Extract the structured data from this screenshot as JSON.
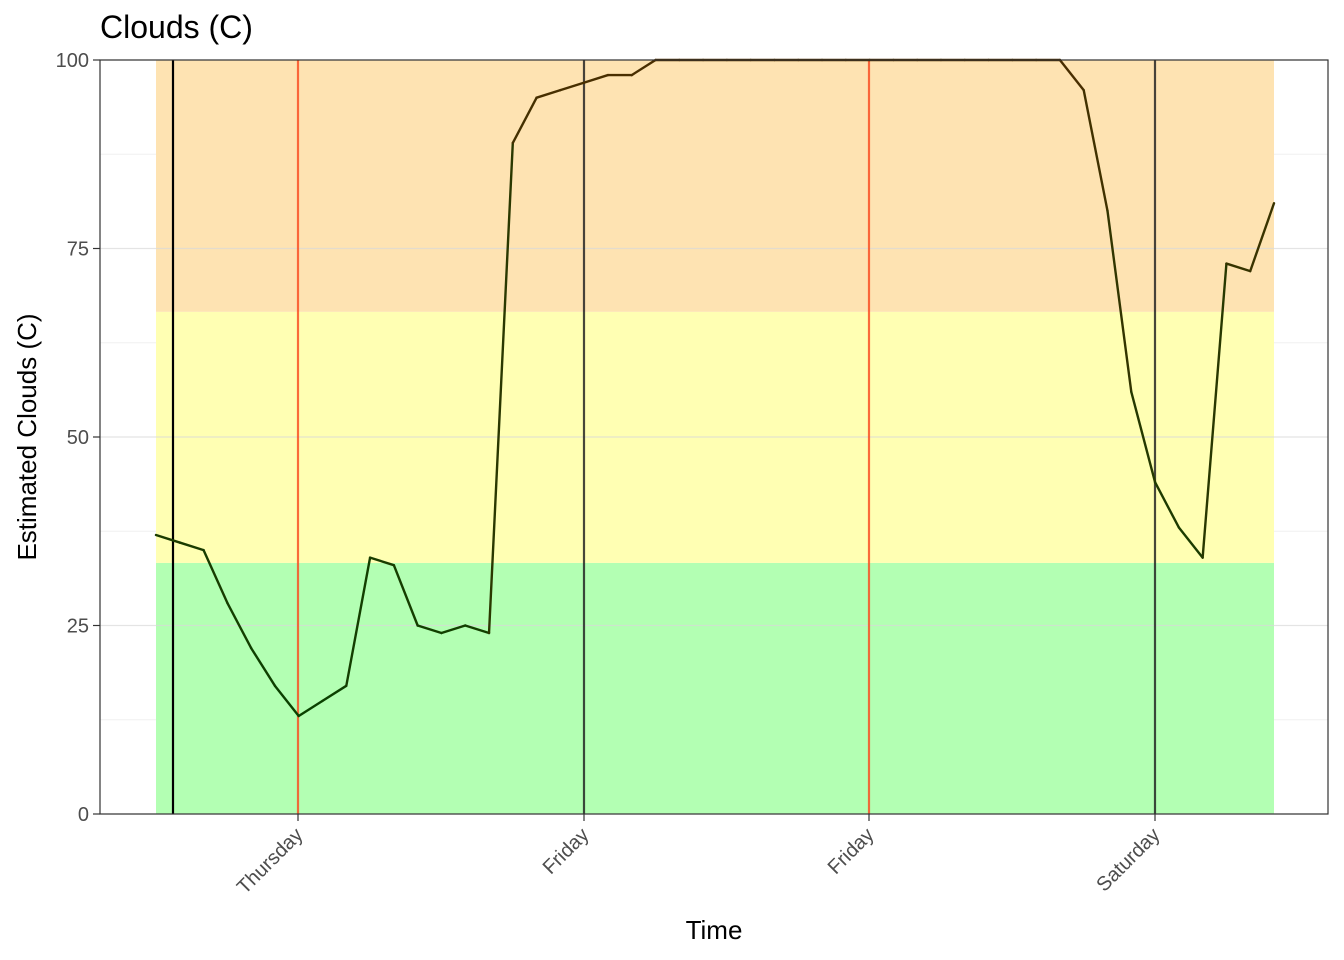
{
  "chart_data": {
    "type": "line",
    "title": "Clouds (C)",
    "xlabel": "Time",
    "ylabel": "Estimated Clouds (C)",
    "ylim": [
      0,
      100
    ],
    "yticks": [
      0,
      25,
      50,
      75,
      100
    ],
    "xticks": [
      "Thursday",
      "Friday",
      "Friday",
      "Saturday"
    ],
    "grid": true,
    "bands": [
      {
        "from": 0,
        "to": 33.3,
        "color": "#b3ffb3"
      },
      {
        "from": 33.3,
        "to": 66.6,
        "color": "#ffffb3"
      },
      {
        "from": 66.6,
        "to": 100,
        "color": "#fee3b2"
      }
    ],
    "series": [
      {
        "color_low": "#004400",
        "color_high": "#4a2e00",
        "values": [
          37,
          36,
          35,
          28,
          22,
          17,
          13,
          15,
          17,
          34,
          33,
          25,
          24,
          25,
          24,
          89,
          95,
          96,
          97,
          98,
          98,
          100,
          100,
          100,
          100,
          100,
          100,
          100,
          100,
          100,
          100,
          100,
          100,
          100,
          100,
          100,
          100,
          100,
          100,
          96,
          80,
          56,
          44,
          38,
          34,
          73,
          72,
          81
        ]
      }
    ],
    "vlines": [
      {
        "color": "#000000"
      },
      {
        "color": "#ff3300"
      },
      {
        "color": "#000000"
      },
      {
        "color": "#ff3300"
      },
      {
        "color": "#000000"
      }
    ]
  }
}
